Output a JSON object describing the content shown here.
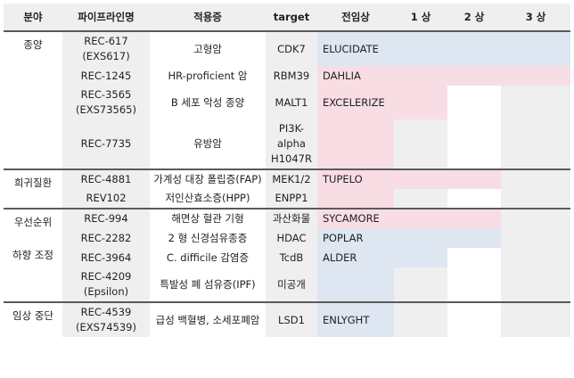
{
  "headers": [
    "분야",
    "파이프라인명",
    "적용증",
    "target",
    "전임상",
    "1 상",
    "2 상",
    "3 상"
  ],
  "rows": [
    {
      "field": "종양",
      "pipeline": [
        "REC-617",
        "(EXS617)"
      ],
      "indication": "고형암",
      "target": [
        "CDK7"
      ],
      "trial": "ELUCIDATE",
      "color": "blue",
      "extent": 4
    },
    {
      "field": "",
      "pipeline": [
        "REC-1245"
      ],
      "indication": "HR-proficient 암",
      "target": [
        "RBM39"
      ],
      "trial": "DAHLIA",
      "color": "pink",
      "extent": 4
    },
    {
      "field": "",
      "pipeline": [
        "REC-3565",
        "(EXS73565)"
      ],
      "indication": "B 세포 악성 종양",
      "target": [
        "MALT1"
      ],
      "trial": "EXCELERIZE",
      "color": "pink",
      "extent": 2
    },
    {
      "field": "",
      "pipeline": [
        "REC-7735"
      ],
      "indication": "유방암",
      "target": [
        "PI3K-",
        "alpha",
        "H1047R"
      ],
      "trial": "",
      "color": "pink",
      "extent": 1
    },
    {
      "field": "희귀질환",
      "pipeline": [
        "REC-4881"
      ],
      "indication": "가계성 대장 폴립증(FAP)",
      "target": [
        "MEK1/2"
      ],
      "trial": "TUPELO",
      "color": "pink",
      "extent": 3
    },
    {
      "field": "",
      "pipeline": [
        "REV102"
      ],
      "indication": "저인산효소증(HPP)",
      "target": [
        "ENPP1"
      ],
      "trial": "",
      "color": "pink",
      "extent": 1
    },
    {
      "field": "우선순위 하향 조정",
      "pipeline": [
        "REC-994"
      ],
      "indication": "해면상 혈관 기형",
      "target": [
        "과산화물"
      ],
      "trial": "SYCAMORE",
      "color": "pink",
      "extent": 3
    },
    {
      "field": "",
      "pipeline": [
        "REC-2282"
      ],
      "indication": "2 형 신경섬유종증",
      "target": [
        "HDAC"
      ],
      "trial": "POPLAR",
      "color": "blue",
      "extent": 3
    },
    {
      "field": "",
      "pipeline": [
        "REC-3964"
      ],
      "indication": "C. difficile 감염증",
      "target": [
        "TcdB"
      ],
      "trial": "ALDER",
      "color": "blue",
      "extent": 2
    },
    {
      "field": "",
      "pipeline": [
        "REC-4209",
        "(Epsilon)"
      ],
      "indication": "특발성 폐 섬유증(IPF)",
      "target": [
        "미공개"
      ],
      "trial": "",
      "color": "blue",
      "extent": 1
    },
    {
      "field": "임상 중단",
      "pipeline": [
        "REC-4539",
        "(EXS74539)"
      ],
      "indication": "급성 백혈병, 소세포폐암",
      "target": [
        "LSD1"
      ],
      "trial": "ENLYGHT",
      "color": "blue",
      "extent": 1
    }
  ],
  "colors": {
    "header_bg": "#efefef",
    "gray_cell": "#efefef",
    "blue": "#dde6f1",
    "pink": "#f8dde4"
  }
}
